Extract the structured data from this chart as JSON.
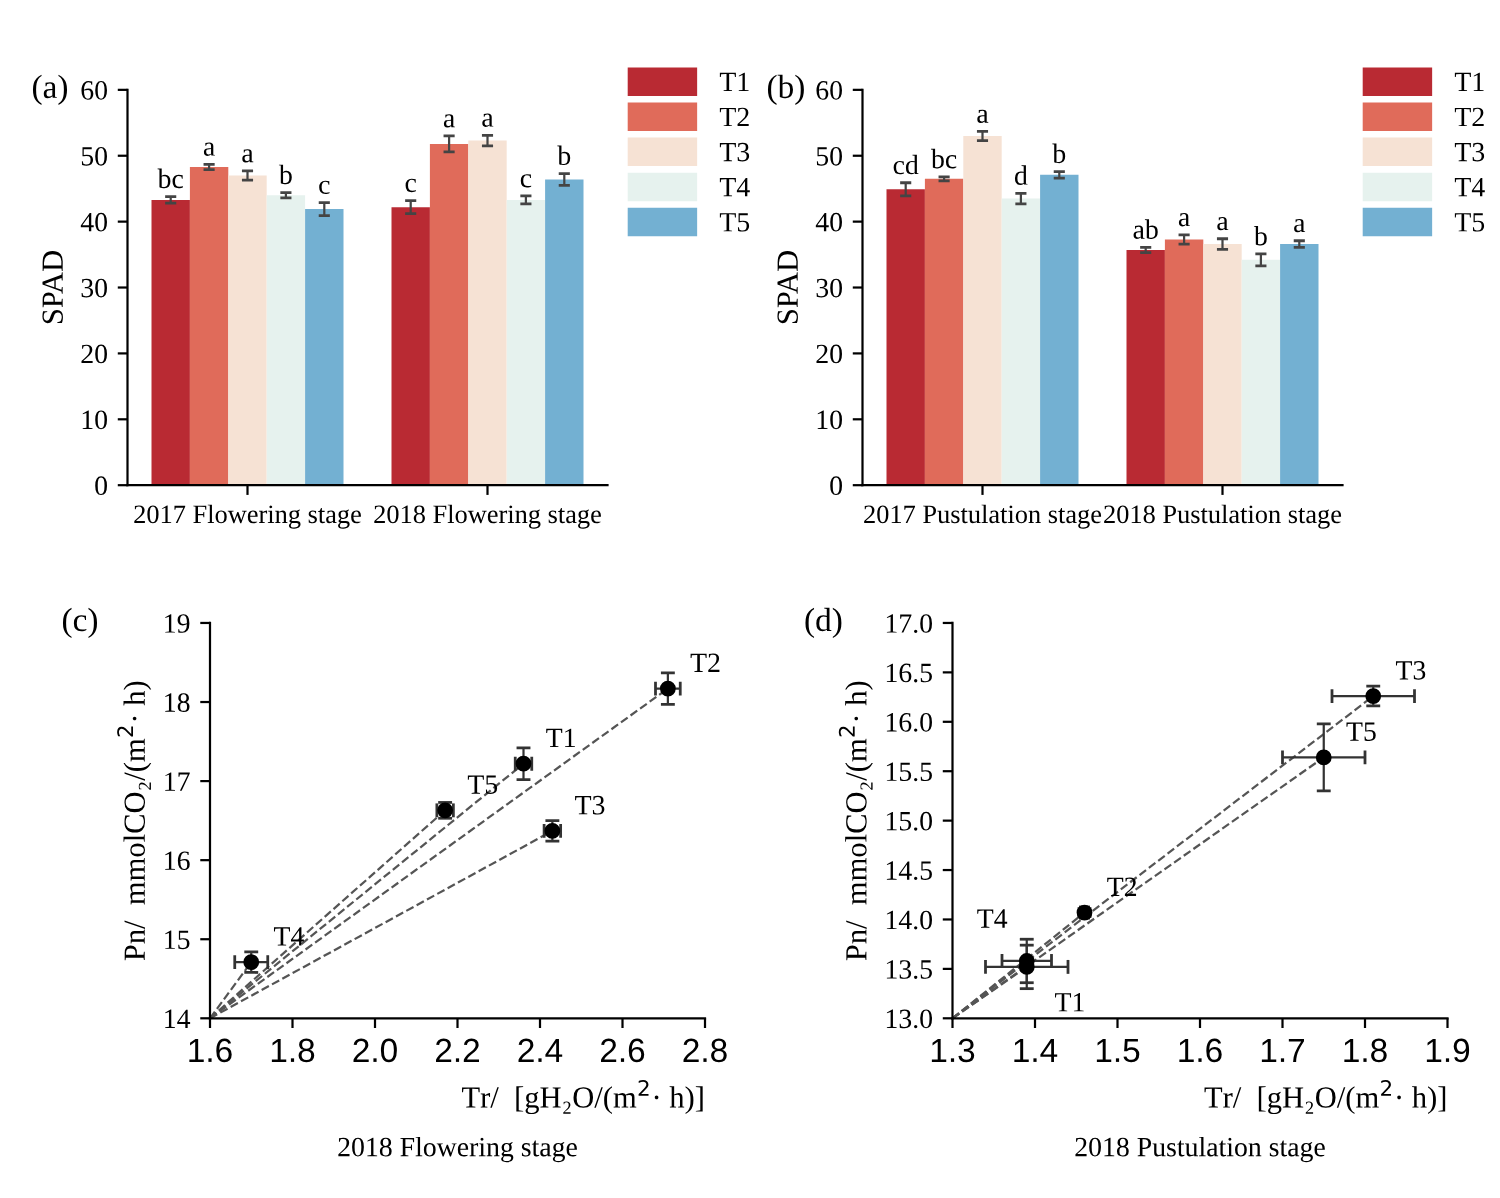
{
  "chart_data": [
    {
      "type": "bar",
      "title": "(a)",
      "ylabel": "SPAD",
      "categories": [
        "2017 Flowering stage",
        "2018 Flowering stage"
      ],
      "ylim": [
        0,
        60
      ],
      "yticks": [
        0,
        10,
        20,
        30,
        40,
        50,
        60
      ],
      "grid": false,
      "legend": "right",
      "series": [
        {
          "name": "T1",
          "color": "#b92a33",
          "values": [
            43.3,
            42.2
          ],
          "errors": [
            0.5,
            1.0
          ],
          "value_labels": [
            "bc",
            "c"
          ]
        },
        {
          "name": "T2",
          "color": "#e06b5a",
          "values": [
            48.3,
            51.8
          ],
          "errors": [
            0.4,
            1.2
          ],
          "value_labels": [
            "a",
            "a"
          ]
        },
        {
          "name": "T3",
          "color": "#f6e2d4",
          "values": [
            47.0,
            52.3
          ],
          "errors": [
            0.7,
            0.8
          ],
          "value_labels": [
            "a",
            "a"
          ]
        },
        {
          "name": "T4",
          "color": "#e6f2ee",
          "values": [
            44.0,
            43.3
          ],
          "errors": [
            0.4,
            0.6
          ],
          "value_labels": [
            "b",
            "c"
          ]
        },
        {
          "name": "T5",
          "color": "#73b0d2",
          "values": [
            41.9,
            46.4
          ],
          "errors": [
            1.0,
            0.9
          ],
          "value_labels": [
            "c",
            "b"
          ]
        }
      ]
    },
    {
      "type": "bar",
      "title": "(b)",
      "ylabel": "SPAD",
      "categories": [
        "2017 Pustulation stage",
        "2018 Pustulation stage"
      ],
      "ylim": [
        0,
        60
      ],
      "yticks": [
        0,
        10,
        20,
        30,
        40,
        50,
        60
      ],
      "grid": false,
      "legend": "right",
      "series": [
        {
          "name": "T1",
          "color": "#b92a33",
          "values": [
            44.9,
            35.7
          ],
          "errors": [
            1.0,
            0.4
          ],
          "value_labels": [
            "cd",
            "ab"
          ]
        },
        {
          "name": "T2",
          "color": "#e06b5a",
          "values": [
            46.5,
            37.3
          ],
          "errors": [
            0.3,
            0.7
          ],
          "value_labels": [
            "bc",
            "a"
          ]
        },
        {
          "name": "T3",
          "color": "#f6e2d4",
          "values": [
            53.0,
            36.6
          ],
          "errors": [
            0.7,
            0.8
          ],
          "value_labels": [
            "a",
            "a"
          ]
        },
        {
          "name": "T4",
          "color": "#e6f2ee",
          "values": [
            43.5,
            34.2
          ],
          "errors": [
            0.8,
            0.9
          ],
          "value_labels": [
            "d",
            "b"
          ]
        },
        {
          "name": "T5",
          "color": "#73b0d2",
          "values": [
            47.1,
            36.6
          ],
          "errors": [
            0.5,
            0.5
          ],
          "value_labels": [
            "b",
            "a"
          ]
        }
      ]
    },
    {
      "type": "scatter",
      "title": "(c)",
      "xlabel": "Tr/  [gH₂O/(m$^{2}$· h)]",
      "ylabel": "Pn/  mmolCO₂/(m$^{2}$· h)",
      "xlim": [
        1.6,
        2.8
      ],
      "xticks": [
        {
          "value": 1.6,
          "label": "1.6"
        },
        {
          "value": 1.8,
          "label": "1.8"
        },
        {
          "value": 2.0,
          "label": "2.0"
        },
        {
          "value": 2.2,
          "label": "2.2"
        },
        {
          "value": 2.4,
          "label": "2.4"
        },
        {
          "value": 2.6,
          "label": "2.6"
        },
        {
          "value": 2.8,
          "label": "2.8"
        }
      ],
      "ylim": [
        14,
        19
      ],
      "yticks": [
        14,
        15,
        16,
        17,
        18,
        19
      ],
      "grid": false,
      "legend": false,
      "series": [
        {
          "type": "line",
          "color": "#555555",
          "line_style": "dashed",
          "x": [
            1.6,
            1.7
          ],
          "values": [
            14,
            14.71
          ]
        },
        {
          "type": "line",
          "color": "#555555",
          "line_style": "dashed",
          "x": [
            1.6,
            2.17
          ],
          "values": [
            14,
            16.63
          ]
        },
        {
          "type": "line",
          "color": "#555555",
          "line_style": "dashed",
          "x": [
            1.6,
            2.36
          ],
          "values": [
            14,
            17.22
          ]
        },
        {
          "type": "line",
          "color": "#555555",
          "line_style": "dashed",
          "x": [
            1.6,
            2.43
          ],
          "values": [
            14,
            16.37
          ]
        },
        {
          "type": "line",
          "color": "#555555",
          "line_style": "dashed",
          "x": [
            1.6,
            2.71
          ],
          "values": [
            14,
            18.17
          ]
        },
        {
          "type": "scatter",
          "color": "#000000",
          "marker": "circle",
          "x": [
            1.7,
            2.17,
            2.36,
            2.43,
            2.71
          ],
          "values": [
            14.71,
            16.63,
            17.22,
            16.37,
            18.17
          ],
          "errors": [
            0.13,
            0.1,
            0.2,
            0.13,
            0.2
          ],
          "xerrors": [
            0.04,
            0.02,
            0.02,
            0.02,
            0.03
          ]
        }
      ],
      "annotations": [
        {
          "text": "T4",
          "x": 1.7,
          "y": 14.71
        },
        {
          "text": "T5",
          "x": 2.17,
          "y": 16.63
        },
        {
          "text": "T1",
          "x": 2.36,
          "y": 17.22
        },
        {
          "text": "T3",
          "x": 2.43,
          "y": 16.37
        },
        {
          "text": "T2",
          "x": 2.71,
          "y": 18.17
        },
        "2018 Flowering stage"
      ]
    },
    {
      "type": "scatter",
      "title": "(d)",
      "xlabel": "Tr/  [gH₂O/(m$^{2}$· h)]",
      "ylabel": "Pn/  mmolCO₂/(m$^{2}$· h)",
      "xlim": [
        1.3,
        1.9
      ],
      "xticks": [
        1.3,
        1.4,
        1.5,
        1.6,
        1.7,
        1.8,
        1.9
      ],
      "ylim": [
        13.0,
        17.0
      ],
      "yticks": [
        {
          "value": 13.0,
          "label": "13.0"
        },
        13.5,
        {
          "value": 14.0,
          "label": "14.0"
        },
        14.5,
        {
          "value": 15.0,
          "label": "15.0"
        },
        15.5,
        {
          "value": 16.0,
          "label": "16.0"
        },
        16.5,
        {
          "value": 17.0,
          "label": "17.0"
        }
      ],
      "grid": false,
      "legend": false,
      "series": [
        {
          "type": "line",
          "color": "#555555",
          "line_style": "dashed",
          "x": [
            1.3,
            1.39
          ],
          "values": [
            13.0,
            13.58
          ]
        },
        {
          "type": "line",
          "color": "#555555",
          "line_style": "dashed",
          "x": [
            1.3,
            1.39
          ],
          "values": [
            13.0,
            13.52
          ]
        },
        {
          "type": "line",
          "color": "#555555",
          "line_style": "dashed",
          "x": [
            1.3,
            1.46
          ],
          "values": [
            13.0,
            14.07
          ]
        },
        {
          "type": "line",
          "color": "#555555",
          "line_style": "dashed",
          "x": [
            1.3,
            1.75
          ],
          "values": [
            13.0,
            15.64
          ]
        },
        {
          "type": "line",
          "color": "#555555",
          "line_style": "dashed",
          "x": [
            1.3,
            1.81
          ],
          "values": [
            13.0,
            16.26
          ]
        },
        {
          "type": "scatter",
          "color": "#000000",
          "marker": "circle",
          "x": [
            1.39,
            1.39,
            1.46,
            1.75,
            1.81
          ],
          "values": [
            13.58,
            13.52,
            14.07,
            15.64,
            16.26
          ],
          "errors": [
            0.22,
            0.22,
            0.04,
            0.34,
            0.1
          ],
          "xerrors": [
            0.03,
            0.05,
            0.005,
            0.05,
            0.05
          ]
        }
      ],
      "annotations": [
        {
          "text": "T4",
          "x": 1.39,
          "y": 13.58
        },
        {
          "text": "T1",
          "x": 1.39,
          "y": 13.52
        },
        {
          "text": "T2",
          "x": 1.46,
          "y": 14.07
        },
        {
          "text": "T5",
          "x": 1.75,
          "y": 15.64
        },
        {
          "text": "T3",
          "x": 1.81,
          "y": 16.26
        },
        "2018 Pustulation stage"
      ]
    }
  ]
}
